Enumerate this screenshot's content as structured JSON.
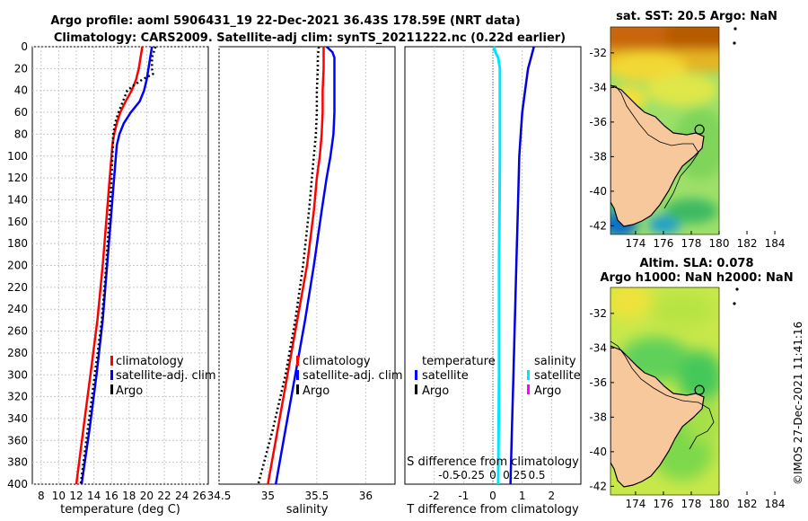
{
  "title": {
    "line1": "Argo profile: aoml 5906431_19 22-Dec-2021 36.43S 178.59E (NRT data)",
    "line2": "Climatology: CARS2009. Satellite-adj clim: synTS_20211222.nc (0.22d earlier)"
  },
  "copyright": "©IMOS 27-Dec-2021 11:41:16",
  "colors": {
    "climatology": "#ff0000",
    "satellite": "#0000ff",
    "argo": "#000000",
    "sat_t_diff": "#0000dd",
    "sat_s_diff": "#00e5ff",
    "argo_s_diff": "#ff00ff",
    "land": "#f7c89b"
  },
  "chart_data": [
    {
      "id": "temperature",
      "type": "line",
      "xlabel": "temperature (deg C)",
      "xlim": [
        7,
        27
      ],
      "xticks": [
        "8",
        "10",
        "12",
        "14",
        "16",
        "18",
        "20",
        "22",
        "24",
        "26"
      ],
      "ylim": [
        0,
        400
      ],
      "yticks": [
        "0",
        "20",
        "40",
        "60",
        "80",
        "100",
        "120",
        "140",
        "160",
        "180",
        "200",
        "220",
        "240",
        "260",
        "280",
        "300",
        "320",
        "340",
        "360",
        "380",
        "400"
      ],
      "legend": [
        "climatology",
        "satellite-adj. clim",
        "Argo"
      ],
      "series": [
        {
          "name": "climatology",
          "depth": [
            0,
            5,
            10,
            20,
            30,
            40,
            50,
            60,
            70,
            80,
            90,
            100,
            120,
            150,
            200,
            250,
            300,
            350,
            400
          ],
          "values": [
            19.5,
            19.4,
            19.3,
            19.1,
            18.8,
            18.3,
            17.6,
            17.0,
            16.6,
            16.3,
            16.1,
            16.0,
            15.8,
            15.5,
            15.0,
            14.4,
            13.6,
            12.8,
            12.0
          ]
        },
        {
          "name": "satellite-adj. clim",
          "depth": [
            0,
            5,
            10,
            20,
            30,
            40,
            50,
            60,
            70,
            80,
            90,
            100,
            120,
            150,
            200,
            250,
            300,
            350,
            400
          ],
          "values": [
            20.6,
            20.5,
            20.4,
            20.2,
            20.0,
            19.7,
            19.2,
            18.2,
            17.4,
            16.9,
            16.6,
            16.5,
            16.3,
            16.0,
            15.5,
            15.0,
            14.3,
            13.5,
            12.6
          ]
        },
        {
          "name": "Argo",
          "depth": [
            0,
            5,
            10,
            15,
            20,
            25,
            30,
            35,
            40,
            50,
            60,
            70,
            80,
            100,
            120,
            150,
            200,
            250,
            300,
            350,
            400
          ],
          "values": [
            21.0,
            20.8,
            20.6,
            20.6,
            20.6,
            20.7,
            19.5,
            18.6,
            17.8,
            17.3,
            16.8,
            16.4,
            16.2,
            16.1,
            16.0,
            15.8,
            15.4,
            14.9,
            14.1,
            13.3,
            12.5
          ]
        }
      ]
    },
    {
      "id": "salinity",
      "type": "line",
      "xlabel": "salinity",
      "xlim": [
        34.5,
        36.3
      ],
      "xticks": [
        "34.5",
        "35",
        "35.5",
        "36"
      ],
      "ylim": [
        0,
        400
      ],
      "legend": [
        "climatology",
        "satellite-adj. clim",
        "Argo"
      ],
      "series": [
        {
          "name": "climatology",
          "depth": [
            0,
            10,
            20,
            40,
            60,
            80,
            100,
            120,
            150,
            200,
            250,
            300,
            350,
            400
          ],
          "values": [
            35.57,
            35.57,
            35.57,
            35.56,
            35.56,
            35.55,
            35.53,
            35.5,
            35.47,
            35.4,
            35.3,
            35.2,
            35.1,
            35.0
          ]
        },
        {
          "name": "satellite-adj. clim",
          "depth": [
            0,
            5,
            10,
            20,
            40,
            60,
            80,
            100,
            120,
            150,
            200,
            250,
            300,
            350,
            400
          ],
          "values": [
            35.6,
            35.66,
            35.68,
            35.68,
            35.68,
            35.68,
            35.67,
            35.64,
            35.6,
            35.55,
            35.47,
            35.38,
            35.28,
            35.18,
            35.08
          ]
        },
        {
          "name": "Argo",
          "depth": [
            0,
            10,
            20,
            40,
            60,
            80,
            100,
            120,
            150,
            200,
            250,
            300,
            350,
            400
          ],
          "values": [
            35.52,
            35.51,
            35.51,
            35.5,
            35.5,
            35.49,
            35.47,
            35.45,
            35.42,
            35.36,
            35.28,
            35.18,
            35.05,
            34.9
          ]
        }
      ]
    },
    {
      "id": "differences",
      "type": "line",
      "xlabel": "T difference from climatology",
      "xlim": [
        -3,
        3
      ],
      "xticks": [
        "-2",
        "-1",
        "0",
        "1",
        "2"
      ],
      "s_label": "S difference from climatology",
      "s_ticks": [
        "-0.5",
        "-0.25",
        "0",
        "0.25",
        "0.5"
      ],
      "ylim": [
        0,
        400
      ],
      "legend_t_title": "temperature",
      "legend_s_title": "salinity",
      "legend_t": [
        "satellite",
        "Argo"
      ],
      "legend_s": [
        "satellite",
        "Argo"
      ],
      "series": [
        {
          "name": "T satellite",
          "depth": [
            0,
            10,
            20,
            40,
            60,
            80,
            100,
            150,
            200,
            250,
            300,
            350,
            400
          ],
          "values": [
            1.4,
            1.3,
            1.2,
            1.1,
            1.0,
            0.95,
            0.9,
            0.85,
            0.8,
            0.75,
            0.7,
            0.65,
            0.6
          ]
        },
        {
          "name": "S satellite",
          "depth": [
            0,
            5,
            10,
            20,
            40,
            100,
            200,
            300,
            400
          ],
          "values": [
            0.01,
            0.03,
            0.06,
            0.08,
            0.08,
            0.08,
            0.07,
            0.07,
            0.06
          ]
        }
      ]
    },
    {
      "id": "map_sst",
      "type": "heatmap",
      "title": "sat. SST: 20.5 Argo: NaN",
      "xlim": [
        172,
        185
      ],
      "ylim": [
        -42.5,
        -30.5
      ],
      "xticks": [
        "174",
        "176",
        "178",
        "180",
        "182",
        "184"
      ],
      "yticks": [
        "-32",
        "-34",
        "-36",
        "-38",
        "-40",
        "-42"
      ],
      "marker": {
        "lon": 178.59,
        "lat": -36.43
      }
    },
    {
      "id": "map_sla",
      "type": "heatmap",
      "title1": "Altim. SLA: 0.078",
      "title2": "Argo h1000: NaN h2000: NaN",
      "xlim": [
        172,
        185
      ],
      "ylim": [
        -42.5,
        -30.5
      ],
      "xticks": [
        "174",
        "176",
        "178",
        "180",
        "182",
        "184"
      ],
      "yticks": [
        "-32",
        "-34",
        "-36",
        "-38",
        "-40",
        "-42"
      ],
      "marker": {
        "lon": 178.59,
        "lat": -36.43
      }
    }
  ]
}
